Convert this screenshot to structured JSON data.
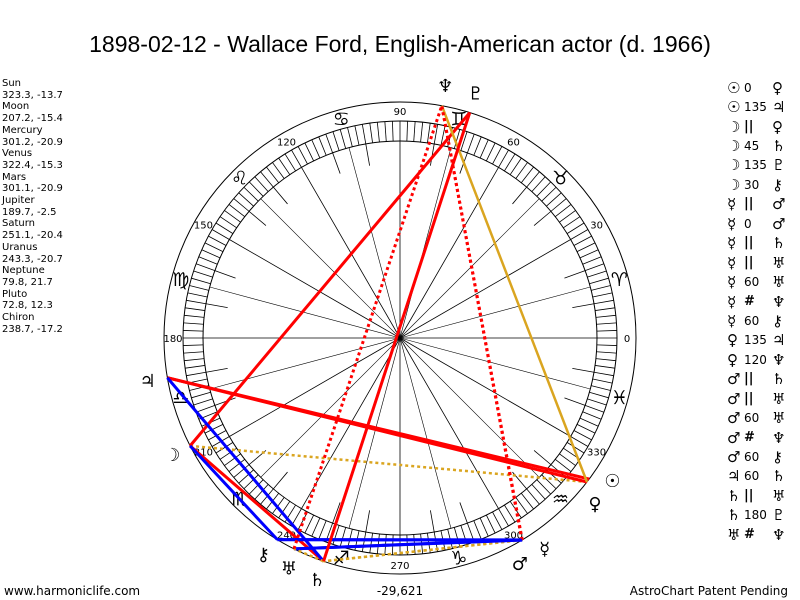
{
  "title": "1898-02-12 - Wallace Ford, English-American actor (d. 1966)",
  "planets": [
    {
      "name": "Sun",
      "coords": "323.3, -13.7",
      "lon": 323.3,
      "glyph": "☉"
    },
    {
      "name": "Moon",
      "coords": "207.2, -15.4",
      "lon": 207.2,
      "glyph": "☽"
    },
    {
      "name": "Mercury",
      "coords": "301.2, -20.9",
      "lon": 301.2,
      "glyph": "☿"
    },
    {
      "name": "Venus",
      "coords": "322.4, -15.3",
      "lon": 322.4,
      "glyph": "♀"
    },
    {
      "name": "Mars",
      "coords": "301.1, -20.9",
      "lon": 301.1,
      "glyph": "♂"
    },
    {
      "name": "Jupiter",
      "coords": "189.7, -2.5",
      "lon": 189.7,
      "glyph": "♃"
    },
    {
      "name": "Saturn",
      "coords": "251.1, -20.4",
      "lon": 251.1,
      "glyph": "♄"
    },
    {
      "name": "Uranus",
      "coords": "243.3, -20.7",
      "lon": 243.3,
      "glyph": "♅"
    },
    {
      "name": "Neptune",
      "coords": "79.8, 21.7",
      "lon": 79.8,
      "glyph": "♆"
    },
    {
      "name": "Pluto",
      "coords": "72.8, 12.3",
      "lon": 72.8,
      "glyph": "♇"
    },
    {
      "name": "Chiron",
      "coords": "238.7, -17.2",
      "lon": 238.7,
      "glyph": "⚷"
    }
  ],
  "aspects": [
    {
      "p1": "Sun",
      "asp": "0",
      "p2": "Venus"
    },
    {
      "p1": "Sun",
      "asp": "135",
      "p2": "Jupiter"
    },
    {
      "p1": "Moon",
      "asp": "||",
      "p2": "Venus"
    },
    {
      "p1": "Moon",
      "asp": "45",
      "p2": "Saturn"
    },
    {
      "p1": "Moon",
      "asp": "135",
      "p2": "Pluto"
    },
    {
      "p1": "Moon",
      "asp": "30",
      "p2": "Chiron"
    },
    {
      "p1": "Mercury",
      "asp": "||",
      "p2": "Mars"
    },
    {
      "p1": "Mercury",
      "asp": "0",
      "p2": "Mars"
    },
    {
      "p1": "Mercury",
      "asp": "||",
      "p2": "Saturn"
    },
    {
      "p1": "Mercury",
      "asp": "||",
      "p2": "Uranus"
    },
    {
      "p1": "Mercury",
      "asp": "60",
      "p2": "Uranus"
    },
    {
      "p1": "Mercury",
      "asp": "#",
      "p2": "Neptune"
    },
    {
      "p1": "Mercury",
      "asp": "60",
      "p2": "Chiron"
    },
    {
      "p1": "Venus",
      "asp": "135",
      "p2": "Jupiter"
    },
    {
      "p1": "Venus",
      "asp": "120",
      "p2": "Neptune"
    },
    {
      "p1": "Mars",
      "asp": "||",
      "p2": "Saturn"
    },
    {
      "p1": "Mars",
      "asp": "||",
      "p2": "Uranus"
    },
    {
      "p1": "Mars",
      "asp": "60",
      "p2": "Uranus"
    },
    {
      "p1": "Mars",
      "asp": "#",
      "p2": "Neptune"
    },
    {
      "p1": "Mars",
      "asp": "60",
      "p2": "Chiron"
    },
    {
      "p1": "Jupiter",
      "asp": "60",
      "p2": "Saturn"
    },
    {
      "p1": "Saturn",
      "asp": "||",
      "p2": "Uranus"
    },
    {
      "p1": "Saturn",
      "asp": "180",
      "p2": "Pluto"
    },
    {
      "p1": "Uranus",
      "asp": "#",
      "p2": "Neptune"
    }
  ],
  "signs": [
    "♈",
    "♉",
    "♊",
    "♋",
    "♌",
    "♍",
    "♎",
    "♏",
    "♐",
    "♑",
    "♒",
    "♓"
  ],
  "degree_labels": [
    "0",
    "30",
    "60",
    "90",
    "120",
    "150",
    "180",
    "210",
    "240",
    "270",
    "300",
    "330"
  ],
  "center_value": "-29,621",
  "footer": {
    "left": "www.harmoniclife.com",
    "right": "AstroChart Patent Pending"
  },
  "colors": {
    "red": "#ff0000",
    "blue": "#0000ff",
    "gold": "#daa520"
  }
}
